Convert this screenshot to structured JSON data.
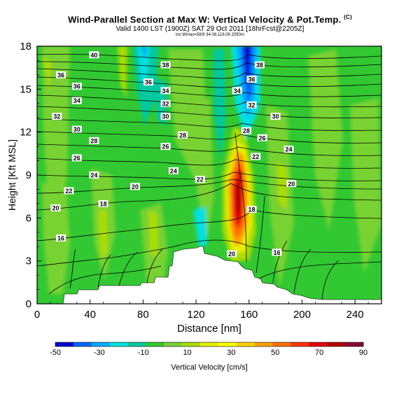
{
  "header": {
    "title": "Wind-Parallel Section at Max W: Vertical Velocity & Pot.Temp.",
    "title_mark": "(C)",
    "subtitle": "Valid 1400 LST (1900Z) SAT 29 Oct 2011 [18hrFcst@2205Z]",
    "subtitle2": "loc:Wmax=58/9 34.08,119.08 2050m"
  },
  "chart_data": {
    "type": "heatmap",
    "title": "Wind-Parallel Section at Max W: Vertical Velocity & Pot.Temp.",
    "xlabel": "Distance [nm]",
    "ylabel": "Height [Kft MSL]",
    "xlim": [
      0,
      260
    ],
    "ylim": [
      0,
      18
    ],
    "xticks": [
      "0",
      "40",
      "80",
      "120",
      "160",
      "200",
      "240"
    ],
    "yticks": [
      "0",
      "3",
      "6",
      "9",
      "12",
      "15",
      "18"
    ],
    "colorbar": {
      "label": "Vertical Velocity [cm/s]",
      "ticks": [
        "-50",
        "-30",
        "-10",
        "10",
        "30",
        "50",
        "70",
        "90"
      ],
      "colors": [
        "#0000cd",
        "#0064ff",
        "#00aaff",
        "#00e0e0",
        "#00c8a0",
        "#32c832",
        "#78d232",
        "#aadc00",
        "#e6f000",
        "#ffff00",
        "#ffd200",
        "#ffa000",
        "#ff6e00",
        "#ff3200",
        "#e60000",
        "#b40000",
        "#8c0032"
      ]
    },
    "background_color": "#32c832",
    "terrain_color": "#ffffff",
    "theta_labels": [
      {
        "v": "40",
        "x": 43,
        "y": 17.4
      },
      {
        "v": "38",
        "x": 97,
        "y": 16.7
      },
      {
        "v": "38",
        "x": 168,
        "y": 16.7
      },
      {
        "v": "36",
        "x": 18,
        "y": 16.0
      },
      {
        "v": "36",
        "x": 84,
        "y": 15.5
      },
      {
        "v": "36",
        "x": 162,
        "y": 15.7
      },
      {
        "v": "36",
        "x": 30,
        "y": 15.2
      },
      {
        "v": "34",
        "x": 97,
        "y": 14.9
      },
      {
        "v": "34",
        "x": 151,
        "y": 14.9
      },
      {
        "v": "34",
        "x": 30,
        "y": 14.2
      },
      {
        "v": "32",
        "x": 97,
        "y": 14.0
      },
      {
        "v": "32",
        "x": 162,
        "y": 13.9
      },
      {
        "v": "32",
        "x": 15,
        "y": 13.1
      },
      {
        "v": "30",
        "x": 97,
        "y": 13.1
      },
      {
        "v": "30",
        "x": 180,
        "y": 13.1
      },
      {
        "v": "30",
        "x": 30,
        "y": 12.2
      },
      {
        "v": "28",
        "x": 158,
        "y": 12.1
      },
      {
        "v": "28",
        "x": 110,
        "y": 11.8
      },
      {
        "v": "26",
        "x": 170,
        "y": 11.6
      },
      {
        "v": "28",
        "x": 43,
        "y": 11.4
      },
      {
        "v": "26",
        "x": 97,
        "y": 11.0
      },
      {
        "v": "24",
        "x": 190,
        "y": 10.8
      },
      {
        "v": "26",
        "x": 30,
        "y": 10.2
      },
      {
        "v": "22",
        "x": 165,
        "y": 10.3
      },
      {
        "v": "24",
        "x": 103,
        "y": 9.3
      },
      {
        "v": "24",
        "x": 43,
        "y": 9.0
      },
      {
        "v": "22",
        "x": 123,
        "y": 8.7
      },
      {
        "v": "20",
        "x": 192,
        "y": 8.4
      },
      {
        "v": "20",
        "x": 74,
        "y": 8.2
      },
      {
        "v": "22",
        "x": 24,
        "y": 7.9
      },
      {
        "v": "18",
        "x": 50,
        "y": 7.0
      },
      {
        "v": "20",
        "x": 14,
        "y": 6.7
      },
      {
        "v": "18",
        "x": 162,
        "y": 6.6
      },
      {
        "v": "16",
        "x": 18,
        "y": 4.6
      },
      {
        "v": "20",
        "x": 147,
        "y": 3.5
      },
      {
        "v": "16",
        "x": 181,
        "y": 3.6
      }
    ]
  },
  "icons": {
    "copyright": "copyright-mark"
  }
}
